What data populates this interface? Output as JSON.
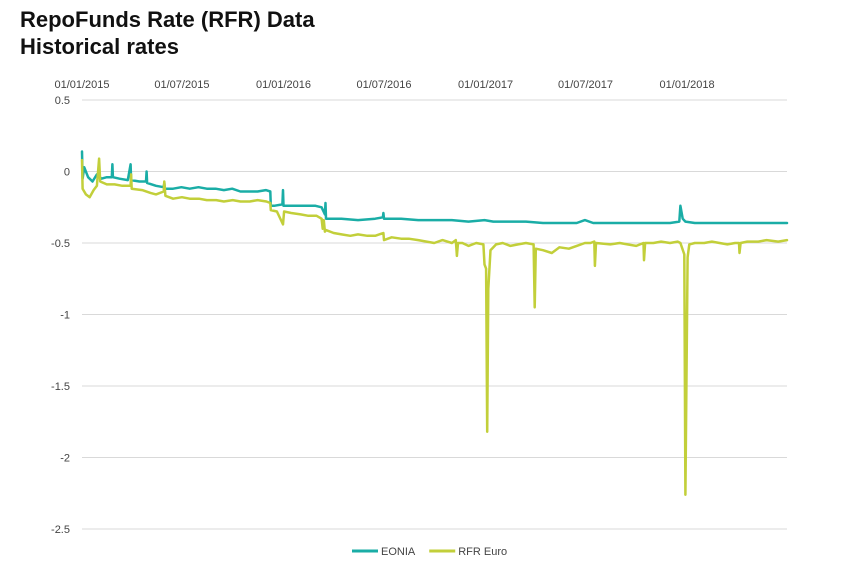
{
  "chart_data": {
    "type": "line",
    "title": "RepoFunds Rate (RFR) Data",
    "subtitle": "Historical rates",
    "xlabel": "",
    "ylabel": "",
    "x_ticks": [
      "01/01/2015",
      "01/07/2015",
      "01/01/2016",
      "01/07/2016",
      "01/01/2017",
      "01/07/2017",
      "01/01/2018"
    ],
    "x_range": [
      "2015-01-01",
      "2018-07-01"
    ],
    "x_axis_position": "top",
    "ylim": [
      -2.5,
      0.5
    ],
    "y_ticks": [
      0.5,
      0,
      -0.5,
      -1,
      -1.5,
      -2,
      -2.5
    ],
    "y_tick_labels": [
      "0.5",
      "0",
      "-0.5",
      "-1",
      "-1.5",
      "-2",
      "-2.5"
    ],
    "grid": "horizontal",
    "legend_position": "bottom",
    "series": [
      {
        "name": "EONIA",
        "color": "#1aada6",
        "points": [
          [
            "2015-01-01",
            0.14
          ],
          [
            "2015-01-02",
            -0.05
          ],
          [
            "2015-01-05",
            0.03
          ],
          [
            "2015-01-12",
            -0.04
          ],
          [
            "2015-01-20",
            -0.07
          ],
          [
            "2015-01-28",
            -0.02
          ],
          [
            "2015-02-05",
            -0.05
          ],
          [
            "2015-02-15",
            -0.04
          ],
          [
            "2015-02-24",
            -0.04
          ],
          [
            "2015-02-25",
            0.05
          ],
          [
            "2015-02-26",
            -0.04
          ],
          [
            "2015-03-10",
            -0.05
          ],
          [
            "2015-03-25",
            -0.06
          ],
          [
            "2015-03-30",
            0.05
          ],
          [
            "2015-03-31",
            -0.06
          ],
          [
            "2015-04-15",
            -0.07
          ],
          [
            "2015-04-27",
            -0.07
          ],
          [
            "2015-04-28",
            0.0
          ],
          [
            "2015-04-29",
            -0.08
          ],
          [
            "2015-05-15",
            -0.1
          ],
          [
            "2015-05-29",
            -0.11
          ],
          [
            "2015-05-30",
            -0.08
          ],
          [
            "2015-05-31",
            -0.12
          ],
          [
            "2015-06-15",
            -0.12
          ],
          [
            "2015-06-30",
            -0.11
          ],
          [
            "2015-07-15",
            -0.12
          ],
          [
            "2015-07-31",
            -0.11
          ],
          [
            "2015-08-15",
            -0.12
          ],
          [
            "2015-08-31",
            -0.12
          ],
          [
            "2015-09-15",
            -0.13
          ],
          [
            "2015-09-30",
            -0.12
          ],
          [
            "2015-10-15",
            -0.14
          ],
          [
            "2015-10-31",
            -0.14
          ],
          [
            "2015-11-15",
            -0.14
          ],
          [
            "2015-11-30",
            -0.13
          ],
          [
            "2015-12-08",
            -0.14
          ],
          [
            "2015-12-09",
            -0.24
          ],
          [
            "2015-12-15",
            -0.24
          ],
          [
            "2015-12-30",
            -0.23
          ],
          [
            "2015-12-31",
            -0.13
          ],
          [
            "2016-01-01",
            -0.24
          ],
          [
            "2016-01-20",
            -0.24
          ],
          [
            "2016-02-10",
            -0.24
          ],
          [
            "2016-02-28",
            -0.24
          ],
          [
            "2016-03-10",
            -0.25
          ],
          [
            "2016-03-16",
            -0.3
          ],
          [
            "2016-03-17",
            -0.22
          ],
          [
            "2016-03-18",
            -0.33
          ],
          [
            "2016-04-15",
            -0.33
          ],
          [
            "2016-05-15",
            -0.34
          ],
          [
            "2016-06-15",
            -0.33
          ],
          [
            "2016-06-29",
            -0.32
          ],
          [
            "2016-06-30",
            -0.29
          ],
          [
            "2016-07-01",
            -0.33
          ],
          [
            "2016-08-01",
            -0.33
          ],
          [
            "2016-09-01",
            -0.34
          ],
          [
            "2016-10-01",
            -0.34
          ],
          [
            "2016-11-01",
            -0.34
          ],
          [
            "2016-12-01",
            -0.35
          ],
          [
            "2016-12-30",
            -0.34
          ],
          [
            "2017-01-15",
            -0.35
          ],
          [
            "2017-02-15",
            -0.35
          ],
          [
            "2017-03-15",
            -0.35
          ],
          [
            "2017-04-15",
            -0.36
          ],
          [
            "2017-05-15",
            -0.36
          ],
          [
            "2017-06-15",
            -0.36
          ],
          [
            "2017-06-30",
            -0.34
          ],
          [
            "2017-07-15",
            -0.36
          ],
          [
            "2017-08-15",
            -0.36
          ],
          [
            "2017-09-15",
            -0.36
          ],
          [
            "2017-10-15",
            -0.36
          ],
          [
            "2017-11-15",
            -0.36
          ],
          [
            "2017-12-01",
            -0.36
          ],
          [
            "2017-12-18",
            -0.35
          ],
          [
            "2017-12-20",
            -0.24
          ],
          [
            "2017-12-24",
            -0.33
          ],
          [
            "2017-12-29",
            -0.35
          ],
          [
            "2018-01-15",
            -0.36
          ],
          [
            "2018-02-15",
            -0.36
          ],
          [
            "2018-03-15",
            -0.36
          ],
          [
            "2018-04-15",
            -0.36
          ],
          [
            "2018-05-15",
            -0.36
          ],
          [
            "2018-06-15",
            -0.36
          ],
          [
            "2018-07-01",
            -0.36
          ]
        ]
      },
      {
        "name": "RFR Euro",
        "color": "#c2cf3a",
        "points": [
          [
            "2015-01-01",
            0.08
          ],
          [
            "2015-01-02",
            -0.12
          ],
          [
            "2015-01-08",
            -0.16
          ],
          [
            "2015-01-15",
            -0.18
          ],
          [
            "2015-01-22",
            -0.13
          ],
          [
            "2015-01-28",
            -0.1
          ],
          [
            "2015-02-01",
            0.09
          ],
          [
            "2015-02-03",
            -0.07
          ],
          [
            "2015-02-15",
            -0.09
          ],
          [
            "2015-03-01",
            -0.09
          ],
          [
            "2015-03-15",
            -0.1
          ],
          [
            "2015-03-30",
            -0.1
          ],
          [
            "2015-03-31",
            -0.02
          ],
          [
            "2015-04-01",
            -0.12
          ],
          [
            "2015-04-20",
            -0.13
          ],
          [
            "2015-05-05",
            -0.15
          ],
          [
            "2015-05-15",
            -0.16
          ],
          [
            "2015-05-29",
            -0.14
          ],
          [
            "2015-05-30",
            -0.07
          ],
          [
            "2015-06-01",
            -0.17
          ],
          [
            "2015-06-15",
            -0.19
          ],
          [
            "2015-07-01",
            -0.18
          ],
          [
            "2015-07-15",
            -0.19
          ],
          [
            "2015-08-01",
            -0.19
          ],
          [
            "2015-08-15",
            -0.2
          ],
          [
            "2015-09-01",
            -0.2
          ],
          [
            "2015-09-15",
            -0.21
          ],
          [
            "2015-10-01",
            -0.2
          ],
          [
            "2015-10-15",
            -0.21
          ],
          [
            "2015-11-01",
            -0.21
          ],
          [
            "2015-11-15",
            -0.2
          ],
          [
            "2015-12-01",
            -0.21
          ],
          [
            "2015-12-08",
            -0.22
          ],
          [
            "2015-12-09",
            -0.27
          ],
          [
            "2015-12-20",
            -0.28
          ],
          [
            "2015-12-31",
            -0.37
          ],
          [
            "2016-01-02",
            -0.28
          ],
          [
            "2016-01-15",
            -0.29
          ],
          [
            "2016-02-01",
            -0.3
          ],
          [
            "2016-02-15",
            -0.31
          ],
          [
            "2016-03-01",
            -0.31
          ],
          [
            "2016-03-10",
            -0.33
          ],
          [
            "2016-03-12",
            -0.4
          ],
          [
            "2016-03-14",
            -0.34
          ],
          [
            "2016-03-16",
            -0.42
          ],
          [
            "2016-03-18",
            -0.41
          ],
          [
            "2016-04-01",
            -0.43
          ],
          [
            "2016-04-15",
            -0.44
          ],
          [
            "2016-05-01",
            -0.45
          ],
          [
            "2016-05-15",
            -0.44
          ],
          [
            "2016-06-01",
            -0.45
          ],
          [
            "2016-06-15",
            -0.45
          ],
          [
            "2016-06-30",
            -0.43
          ],
          [
            "2016-07-01",
            -0.48
          ],
          [
            "2016-07-15",
            -0.46
          ],
          [
            "2016-08-01",
            -0.47
          ],
          [
            "2016-08-15",
            -0.47
          ],
          [
            "2016-09-01",
            -0.48
          ],
          [
            "2016-09-30",
            -0.5
          ],
          [
            "2016-10-15",
            -0.48
          ],
          [
            "2016-11-01",
            -0.5
          ],
          [
            "2016-11-08",
            -0.48
          ],
          [
            "2016-11-10",
            -0.59
          ],
          [
            "2016-11-12",
            -0.5
          ],
          [
            "2016-11-20",
            -0.5
          ],
          [
            "2016-12-01",
            -0.52
          ],
          [
            "2016-12-15",
            -0.5
          ],
          [
            "2016-12-28",
            -0.51
          ],
          [
            "2016-12-30",
            -0.65
          ],
          [
            "2017-01-02",
            -0.68
          ],
          [
            "2017-01-04",
            -1.82
          ],
          [
            "2017-01-06",
            -0.82
          ],
          [
            "2017-01-10",
            -0.55
          ],
          [
            "2017-01-20",
            -0.51
          ],
          [
            "2017-02-01",
            -0.5
          ],
          [
            "2017-02-15",
            -0.52
          ],
          [
            "2017-03-01",
            -0.51
          ],
          [
            "2017-03-15",
            -0.5
          ],
          [
            "2017-03-29",
            -0.51
          ],
          [
            "2017-03-31",
            -0.95
          ],
          [
            "2017-04-02",
            -0.54
          ],
          [
            "2017-04-15",
            -0.55
          ],
          [
            "2017-05-01",
            -0.57
          ],
          [
            "2017-05-15",
            -0.53
          ],
          [
            "2017-06-01",
            -0.54
          ],
          [
            "2017-06-15",
            -0.52
          ],
          [
            "2017-06-30",
            -0.5
          ],
          [
            "2017-07-10",
            -0.5
          ],
          [
            "2017-07-17",
            -0.49
          ],
          [
            "2017-07-18",
            -0.66
          ],
          [
            "2017-07-20",
            -0.5
          ],
          [
            "2017-08-15",
            -0.51
          ],
          [
            "2017-09-01",
            -0.5
          ],
          [
            "2017-09-15",
            -0.51
          ],
          [
            "2017-10-01",
            -0.52
          ],
          [
            "2017-10-14",
            -0.5
          ],
          [
            "2017-10-15",
            -0.62
          ],
          [
            "2017-10-17",
            -0.5
          ],
          [
            "2017-11-01",
            -0.5
          ],
          [
            "2017-11-15",
            -0.49
          ],
          [
            "2017-12-01",
            -0.5
          ],
          [
            "2017-12-15",
            -0.49
          ],
          [
            "2017-12-20",
            -0.5
          ],
          [
            "2017-12-27",
            -0.58
          ],
          [
            "2017-12-29",
            -2.26
          ],
          [
            "2018-01-02",
            -0.6
          ],
          [
            "2018-01-05",
            -0.51
          ],
          [
            "2018-01-15",
            -0.5
          ],
          [
            "2018-02-01",
            -0.5
          ],
          [
            "2018-02-15",
            -0.49
          ],
          [
            "2018-03-01",
            -0.5
          ],
          [
            "2018-03-15",
            -0.51
          ],
          [
            "2018-03-29",
            -0.5
          ],
          [
            "2018-04-05",
            -0.5
          ],
          [
            "2018-04-06",
            -0.57
          ],
          [
            "2018-04-08",
            -0.5
          ],
          [
            "2018-04-20",
            -0.49
          ],
          [
            "2018-05-10",
            -0.49
          ],
          [
            "2018-05-25",
            -0.48
          ],
          [
            "2018-06-15",
            -0.49
          ],
          [
            "2018-07-01",
            -0.48
          ]
        ]
      }
    ]
  }
}
